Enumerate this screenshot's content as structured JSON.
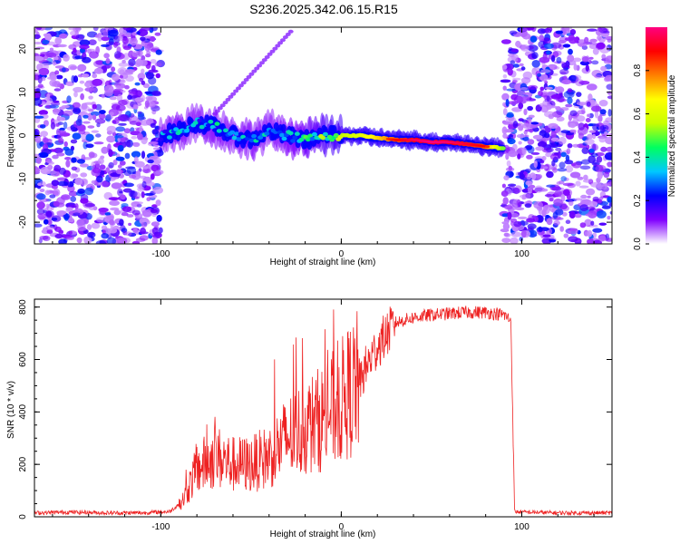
{
  "title": "S236.2025.342.06.15.R15",
  "chart_data": [
    {
      "type": "heatmap",
      "xlabel": "Height of straight line (km)",
      "ylabel": "Frequency (Hz)",
      "xlim": [
        -170,
        150
      ],
      "ylim": [
        -25,
        25
      ],
      "x_ticks": [
        -100,
        0,
        100
      ],
      "y_ticks": [
        -20,
        -10,
        0,
        10,
        20
      ],
      "colorbar": {
        "label": "Normalized spectral amplitude",
        "range": [
          0,
          1
        ],
        "ticks": [
          0.0,
          0.2,
          0.4,
          0.6,
          0.8
        ],
        "tick_labels": [
          "0.0",
          "0.2",
          "0.4",
          "0.6",
          "0.8"
        ],
        "colors": [
          "#ffffff",
          "#8000ff",
          "#0000ff",
          "#00c8ff",
          "#00ff60",
          "#c8ff00",
          "#ffff00",
          "#ff8000",
          "#ff0000",
          "#ff0080"
        ]
      },
      "ridge": {
        "x": [
          -100,
          -90,
          -80,
          -70,
          -60,
          -50,
          -40,
          -30,
          -20,
          -10,
          0,
          10,
          20,
          30,
          40,
          50,
          60,
          70,
          80,
          90
        ],
        "frequency": [
          0,
          1,
          3,
          2,
          0,
          -1,
          1,
          0,
          -1,
          0,
          0,
          0,
          -0.5,
          -1,
          -1,
          -1.5,
          -1.5,
          -2,
          -2.5,
          -3
        ]
      },
      "ridge_amplitude": [
        0.3,
        0.35,
        0.3,
        0.35,
        0.3,
        0.35,
        0.3,
        0.35,
        0.4,
        0.5,
        0.55,
        0.6,
        0.7,
        0.8,
        0.88,
        0.92,
        0.9,
        0.85,
        0.8,
        0.5
      ],
      "noise_regions": [
        [
          -170,
          -100
        ],
        [
          90,
          150
        ]
      ]
    },
    {
      "type": "line",
      "xlabel": "Height of straight line (km)",
      "ylabel": "SNR (10 * v/v)",
      "xlim": [
        -170,
        150
      ],
      "ylim": [
        0,
        830
      ],
      "x_ticks": [
        -100,
        0,
        100
      ],
      "y_ticks": [
        0,
        200,
        400,
        600,
        800
      ],
      "series": [
        {
          "name": "SNR",
          "color": "#ee2222",
          "x": [
            -170,
            -150,
            -130,
            -110,
            -95,
            -88,
            -80,
            -70,
            -60,
            -50,
            -40,
            -30,
            -20,
            -10,
            0,
            10,
            20,
            30,
            40,
            50,
            60,
            70,
            80,
            90,
            94,
            96,
            100,
            120,
            150
          ],
          "y": [
            15,
            18,
            15,
            15,
            20,
            60,
            180,
            230,
            200,
            200,
            230,
            300,
            340,
            380,
            440,
            520,
            650,
            740,
            760,
            770,
            775,
            780,
            780,
            770,
            750,
            20,
            18,
            15,
            15
          ]
        }
      ]
    }
  ]
}
